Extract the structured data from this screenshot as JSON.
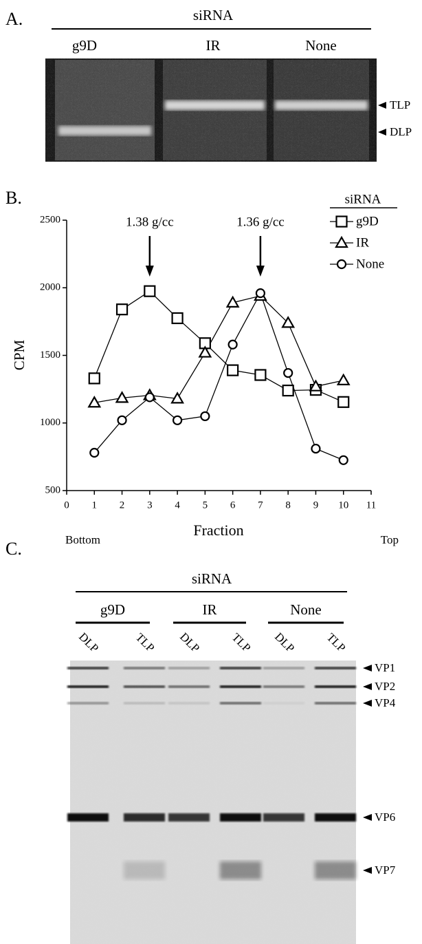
{
  "panel_a": {
    "label": "A.",
    "header": "siRNA",
    "lanes": [
      "g9D",
      "IR",
      "None"
    ],
    "bands": [
      "TLP",
      "DLP"
    ]
  },
  "chart_data": {
    "type": "line",
    "label": "B.",
    "x_label": "Fraction",
    "y_label": "CPM",
    "x_left_note": "Bottom",
    "x_right_note": "Top",
    "annotations": [
      {
        "text": "1.38 g/cc",
        "x": 3
      },
      {
        "text": "1.36 g/cc",
        "x": 7
      }
    ],
    "legend_title": "siRNA",
    "legend": "upper right",
    "x": [
      1,
      2,
      3,
      4,
      5,
      6,
      7,
      8,
      9,
      10
    ],
    "series": [
      {
        "name": "g9D",
        "color": "#000000",
        "marker": "square",
        "values": [
          1330,
          1840,
          1975,
          1775,
          1590,
          1390,
          1355,
          1240,
          1245,
          1155
        ]
      },
      {
        "name": "IR",
        "color": "#000000",
        "marker": "triangle",
        "values": [
          1150,
          1185,
          1205,
          1180,
          1520,
          1890,
          1940,
          1740,
          1270,
          1315
        ]
      },
      {
        "name": "None",
        "color": "#000000",
        "marker": "circle",
        "values": [
          780,
          1020,
          1190,
          1020,
          1050,
          1580,
          1960,
          1370,
          810,
          725
        ]
      }
    ],
    "xlim": [
      0,
      11
    ],
    "xticks": [
      0,
      1,
      2,
      3,
      4,
      5,
      6,
      7,
      8,
      9,
      10,
      11
    ],
    "ylim": [
      500,
      2500
    ],
    "yticks": [
      500,
      1000,
      1500,
      2000,
      2500
    ]
  },
  "panel_c": {
    "label": "C.",
    "header": "siRNA",
    "groups": [
      "g9D",
      "IR",
      "None"
    ],
    "lanes": [
      "DLP",
      "TLP",
      "DLP",
      "TLP",
      "DLP",
      "TLP"
    ],
    "bands": [
      "VP1",
      "VP2",
      "VP4",
      "VP6",
      "VP7"
    ]
  }
}
